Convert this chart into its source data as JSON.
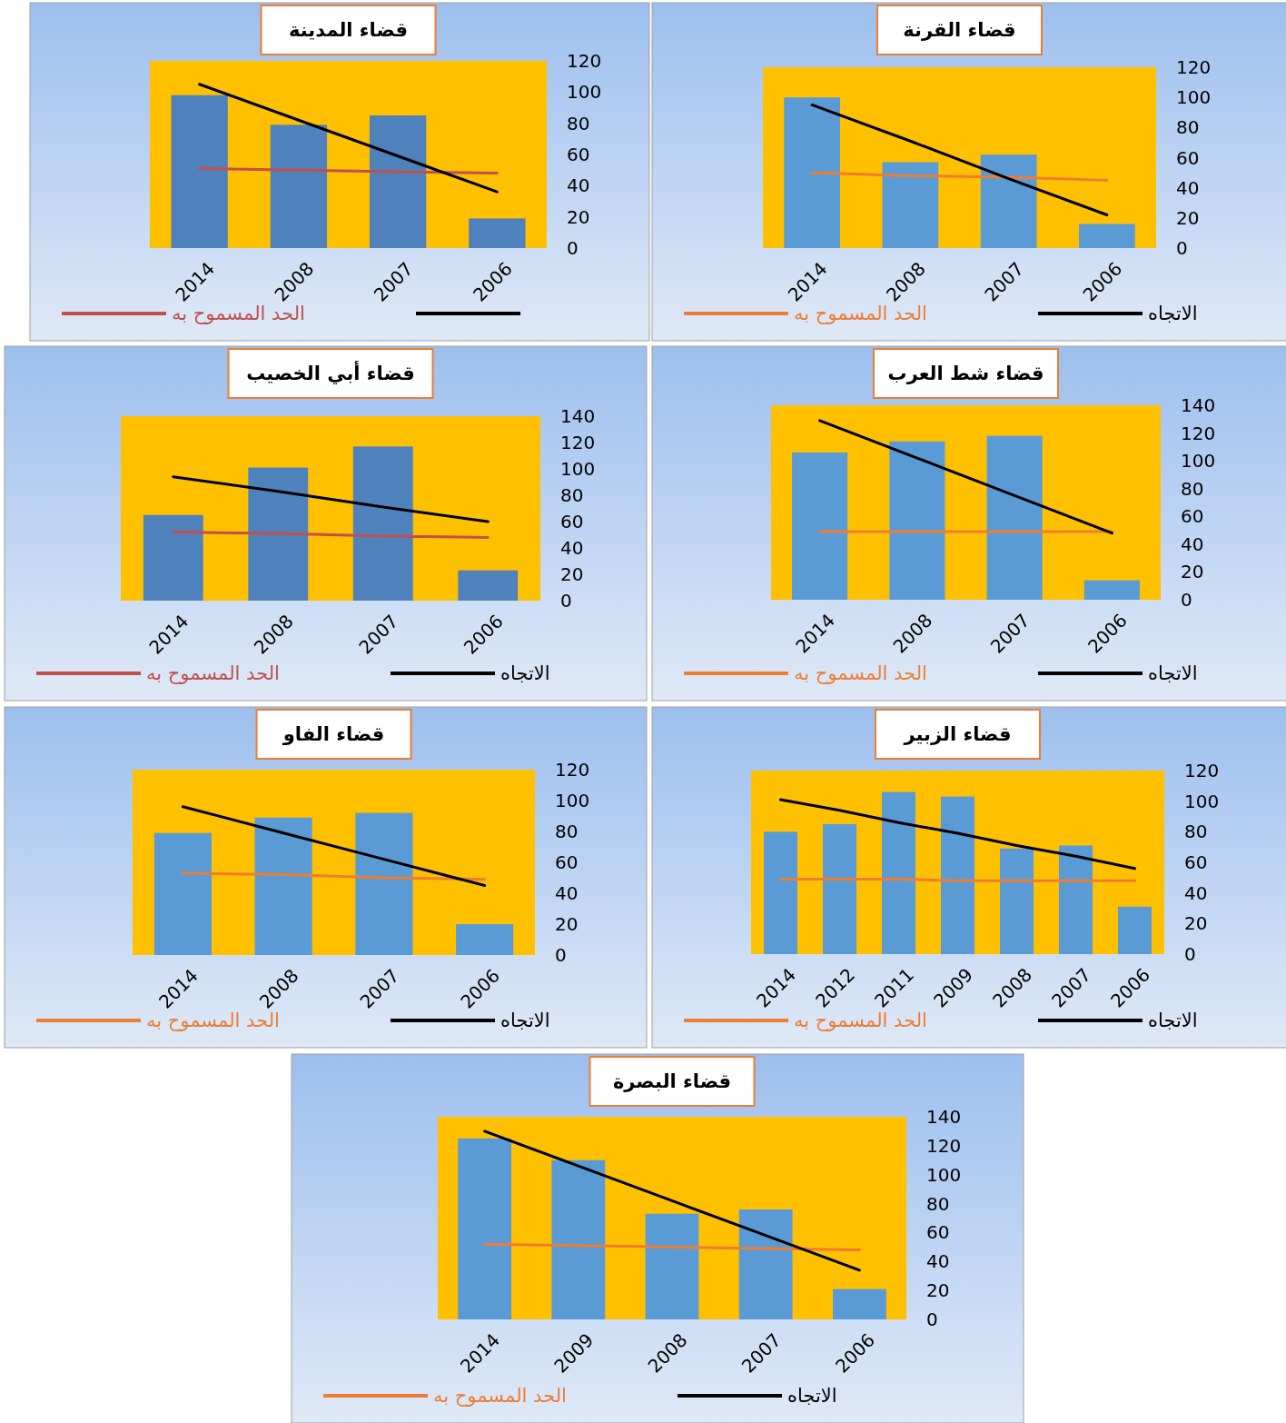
{
  "chart_data": [
    {
      "type": "bar",
      "title": "قضاء المدينة",
      "categories": [
        "2014",
        "2008",
        "2007",
        "2006"
      ],
      "ylim": [
        0,
        120
      ],
      "yticks": [
        0,
        20,
        40,
        60,
        80,
        100,
        120
      ],
      "grid": false,
      "legend": "bottom",
      "series": [
        {
          "type": "bar",
          "color": "#4f81bd",
          "values": [
            98,
            79,
            85,
            19
          ]
        },
        {
          "type": "line",
          "name": "الحد المسموح به",
          "color": "#c0504d",
          "values": [
            51,
            50,
            49,
            48
          ]
        },
        {
          "type": "line",
          "color": "#000000",
          "values": [
            105,
            82,
            59,
            36
          ]
        }
      ]
    },
    {
      "type": "bar",
      "title": "قضاء القرنة",
      "categories": [
        "2014",
        "2008",
        "2007",
        "2006"
      ],
      "ylim": [
        0,
        120
      ],
      "yticks": [
        0,
        20,
        40,
        60,
        80,
        100,
        120
      ],
      "grid": false,
      "legend": "bottom",
      "series": [
        {
          "type": "bar",
          "color": "#5b9bd5",
          "values": [
            100,
            57,
            62,
            16
          ]
        },
        {
          "type": "line",
          "name": "الحد المسموح به",
          "color": "#ed7d31",
          "values": [
            50,
            48,
            47,
            45
          ]
        },
        {
          "type": "line",
          "name": "الاتجاه",
          "color": "#000000",
          "values": [
            95,
            71,
            46,
            22
          ]
        }
      ]
    },
    {
      "type": "bar",
      "title": "قضاء أبي الخصيب",
      "categories": [
        "2014",
        "2008",
        "2007",
        "2006"
      ],
      "ylim": [
        0,
        140
      ],
      "yticks": [
        0,
        20,
        40,
        60,
        80,
        100,
        120,
        140
      ],
      "grid": false,
      "legend": "bottom",
      "series": [
        {
          "type": "bar",
          "color": "#4f81bd",
          "values": [
            65,
            101,
            117,
            23
          ]
        },
        {
          "type": "line",
          "name": "الحد المسموح به",
          "color": "#c0504d",
          "values": [
            52,
            51,
            49,
            48
          ]
        },
        {
          "type": "line",
          "name": "الاتجاه",
          "color": "#000000",
          "values": [
            94,
            83,
            71,
            60
          ]
        }
      ]
    },
    {
      "type": "bar",
      "title": "قضاء شط العرب",
      "categories": [
        "2014",
        "2008",
        "2007",
        "2006"
      ],
      "ylim": [
        0,
        140
      ],
      "yticks": [
        0,
        20,
        40,
        60,
        80,
        100,
        120,
        140
      ],
      "grid": false,
      "legend": "bottom",
      "series": [
        {
          "type": "bar",
          "color": "#5b9bd5",
          "values": [
            106,
            114,
            118,
            14
          ]
        },
        {
          "type": "line",
          "name": "الحد المسموح به",
          "color": "#ed7d31",
          "values": [
            49,
            49,
            49,
            49
          ]
        },
        {
          "type": "line",
          "name": "الاتجاه",
          "color": "#000000",
          "values": [
            129,
            102,
            75,
            48
          ]
        }
      ]
    },
    {
      "type": "bar",
      "title": "قضاء الفاو",
      "categories": [
        "2014",
        "2008",
        "2007",
        "2006"
      ],
      "ylim": [
        0,
        120
      ],
      "yticks": [
        0,
        20,
        40,
        60,
        80,
        100,
        120
      ],
      "grid": false,
      "legend": "bottom",
      "series": [
        {
          "type": "bar",
          "color": "#5b9bd5",
          "values": [
            79,
            89,
            92,
            20
          ]
        },
        {
          "type": "line",
          "name": "الحد المسموح به",
          "color": "#ed7d31",
          "values": [
            53,
            52,
            50,
            49
          ]
        },
        {
          "type": "line",
          "name": "الاتجاه",
          "color": "#000000",
          "values": [
            96,
            79,
            62,
            45
          ]
        }
      ]
    },
    {
      "type": "bar",
      "title": "قضاء الزبير",
      "categories": [
        "2014",
        "2012",
        "2011",
        "2009",
        "2008",
        "2007",
        "2006"
      ],
      "ylim": [
        0,
        120
      ],
      "yticks": [
        0,
        20,
        40,
        60,
        80,
        100,
        120
      ],
      "grid": false,
      "legend": "bottom",
      "series": [
        {
          "type": "bar",
          "color": "#5b9bd5",
          "values": [
            80,
            85,
            106,
            103,
            69,
            71,
            31
          ]
        },
        {
          "type": "line",
          "name": "الحد المسموح به",
          "color": "#ed7d31",
          "values": [
            49,
            49,
            49,
            48,
            48,
            48,
            48
          ]
        },
        {
          "type": "line",
          "name": "الاتجاه",
          "color": "#000000",
          "values": [
            101,
            94,
            86,
            79,
            71,
            64,
            56
          ]
        }
      ]
    },
    {
      "type": "bar",
      "title": "قضاء البصرة",
      "categories": [
        "2014",
        "2009",
        "2008",
        "2007",
        "2006"
      ],
      "ylim": [
        0,
        140
      ],
      "yticks": [
        0,
        20,
        40,
        60,
        80,
        100,
        120,
        140
      ],
      "grid": false,
      "legend": "bottom",
      "series": [
        {
          "type": "bar",
          "color": "#5b9bd5",
          "values": [
            125,
            110,
            73,
            76,
            21
          ]
        },
        {
          "type": "line",
          "name": "الحد المسموح به",
          "color": "#ed7d31",
          "values": [
            52,
            51,
            50,
            49,
            48
          ]
        },
        {
          "type": "line",
          "name": "الاتجاه",
          "color": "#000000",
          "values": [
            130,
            106,
            82,
            58,
            34
          ]
        }
      ]
    }
  ]
}
